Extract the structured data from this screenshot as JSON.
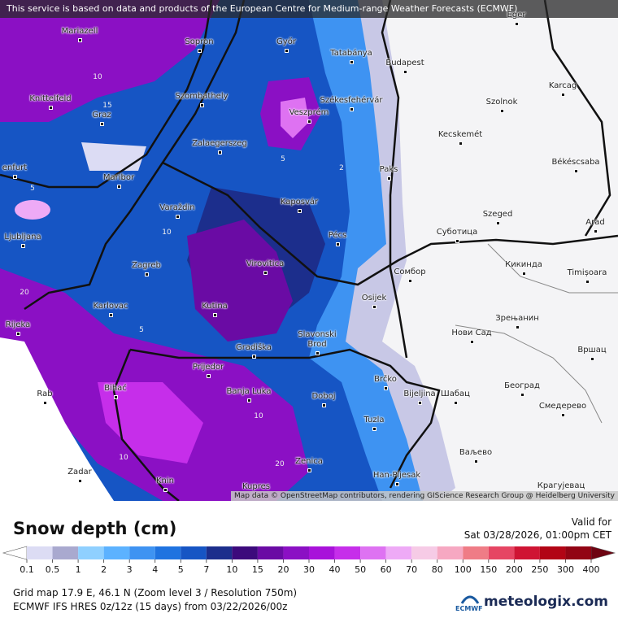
{
  "banner": "This service is based on data and products of the European Centre for Medium-range Weather Forecasts (ECMWF)",
  "map": {
    "cities": [
      "Mariazell",
      "Sopron",
      "Győr",
      "Tatabánya",
      "Budapest",
      "Eger",
      "Karcag",
      "Szolnok",
      "Knittelfeld",
      "Szombathely",
      "Székesfehérvár",
      "Graz",
      "Veszprém",
      "Zalaegerszeg",
      "Kecskemét",
      "Paks",
      "Békéscsaba",
      "Maribor",
      "enfurt",
      "Varaždin",
      "Kaposvár",
      "Szeged",
      "Ljubljana",
      "Arad",
      "Pécs",
      "Суботица",
      "Zagreb",
      "Virovitica",
      "Кикинда",
      "Сомбор",
      "Timișoara",
      "Karlovac",
      "Kutina",
      "Osijek",
      "Зрењанин",
      "Rijeka",
      "Slavonski Brod",
      "Нови Сад",
      "Gradiška",
      "Вршац",
      "Prijedor",
      "Brčko",
      "Београд",
      "Bihać",
      "Banja Luka",
      "Bijeljina",
      "Шабац",
      "Rab",
      "Doboj",
      "Смедерево",
      "Tuzla",
      "Ваљево",
      "Zenica",
      "Zadar",
      "Han-Pijesak",
      "Knin",
      "Kupres",
      "Крагујевац"
    ],
    "contour_labels": [
      "10",
      "15",
      "2",
      "5",
      "10",
      "20",
      "5",
      "10",
      "10",
      "20",
      "5"
    ],
    "attribution": "Map data © OpenStreetMap contributors, rendering GIScience Research Group @ Heidelberg University"
  },
  "legend": {
    "title": "Snow depth (cm)",
    "valid_label": "Valid for",
    "valid_time": "Sat 03/28/2026, 01:00pm CET",
    "ticks": [
      0.1,
      0.5,
      1,
      2,
      3,
      4,
      5,
      7,
      10,
      15,
      20,
      30,
      40,
      50,
      60,
      70,
      80,
      100,
      150,
      200,
      250,
      300,
      400
    ],
    "colors": [
      "#dcdcf4",
      "#a9a9cf",
      "#8fd0ff",
      "#5cb2ff",
      "#3e93f2",
      "#1f73e0",
      "#1655c4",
      "#1c2e8c",
      "#3c0a7c",
      "#6a0ba4",
      "#8b10c4",
      "#a812da",
      "#c62eea",
      "#de72f2",
      "#eeaaf6",
      "#f6cbe6",
      "#f6a8c2",
      "#ef7c86",
      "#e64563",
      "#cf1433",
      "#b20415",
      "#920414"
    ],
    "under_color": "#ffffff",
    "over_color": "#6e0412"
  },
  "footer": {
    "line1": "Grid map 17.9 E, 46.1 N (Zoom level 3 / Resolution 750m)",
    "line2": "ECMWF IFS HRES 0z/12z (15 days) from  03/22/2026/00z",
    "ecmwf_logo": "ECMWF",
    "brand": "meteologix.com"
  }
}
